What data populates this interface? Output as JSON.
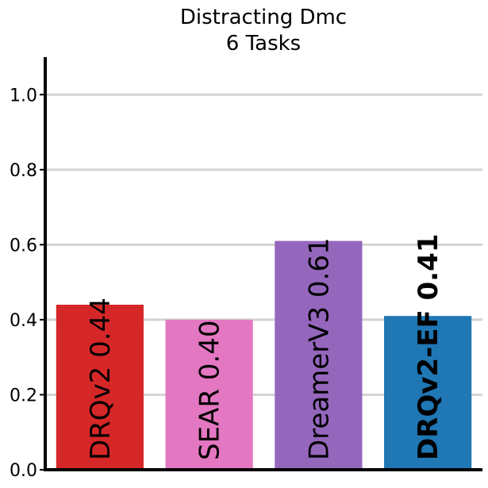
{
  "chart_data": {
    "type": "bar",
    "title": "Distracting Dmc",
    "subtitle": "6 Tasks",
    "xlabel": "",
    "ylabel": "",
    "ylim": [
      0,
      1.1
    ],
    "yticks": [
      "0.0",
      "0.2",
      "0.4",
      "0.6",
      "0.8",
      "1.0"
    ],
    "grid": true,
    "categories": [
      "DRQv2",
      "SEAR",
      "DreamerV3",
      "DRQv2-EF"
    ],
    "values": [
      0.44,
      0.4,
      0.61,
      0.41
    ],
    "bar_labels": [
      "DRQv2 0.44",
      "SEAR 0.40",
      "DreamerV3 0.61",
      "DRQv2-EF 0.41"
    ],
    "colors": [
      "#d62728",
      "#e377c2",
      "#9467bd",
      "#1f77b4"
    ],
    "bold": [
      false,
      false,
      false,
      true
    ]
  }
}
